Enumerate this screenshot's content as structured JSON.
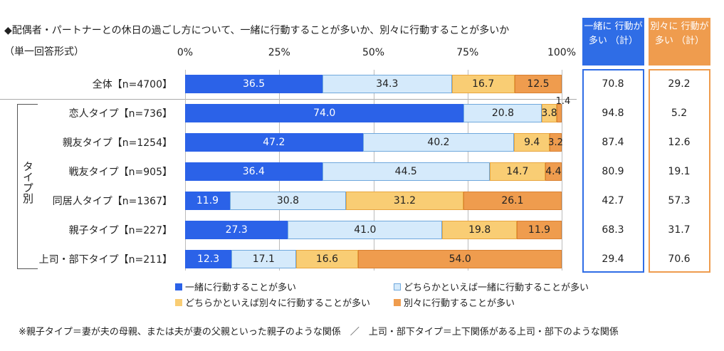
{
  "title": "◆配偶者・パートナーとの休日の過ごし方について、一緒に行動することが多いか、別々に行動することが多いか",
  "subtitle": "（単一回答形式）",
  "group_label": "タイプ別",
  "colors": {
    "together": "#2b62e8",
    "rather_together": "#d5eafb",
    "rather_separate": "#f9cd74",
    "separate": "#ef9c4e"
  },
  "summary_headers": {
    "together": "一緒に 行動が多い （計）",
    "separate": "別々に 行動が多い （計）"
  },
  "footnote": "※親子タイプ＝妻が夫の母親、または夫が妻の父親といった親子のような関係　／　上司・部下タイプ＝上下関係がある上司・部下のような関係",
  "chart_data": {
    "type": "bar",
    "orientation": "horizontal",
    "stacked": true,
    "xlim": [
      0,
      100
    ],
    "xticks": [
      "0%",
      "25%",
      "50%",
      "75%",
      "100%"
    ],
    "categories": [
      "全体【n=4700】",
      "恋人タイプ【n=736】",
      "親友タイプ【n=1254】",
      "戦友タイプ【n=905】",
      "同居人タイプ【n=1367】",
      "親子タイプ【n=227】",
      "上司・部下タイプ【n=211】"
    ],
    "series": [
      {
        "name": "一緒に行動することが多い",
        "values": [
          36.5,
          74.0,
          47.2,
          36.4,
          11.9,
          27.3,
          12.3
        ]
      },
      {
        "name": "どちらかといえば一緒に行動することが多い",
        "values": [
          34.3,
          20.8,
          40.2,
          44.5,
          30.8,
          41.0,
          17.1
        ]
      },
      {
        "name": "どちらかといえば別々に行動することが多い",
        "values": [
          16.7,
          3.8,
          9.4,
          14.7,
          31.2,
          19.8,
          16.6
        ]
      },
      {
        "name": "別々に行動することが多い",
        "values": [
          12.5,
          1.4,
          3.2,
          4.4,
          26.1,
          11.9,
          54.0
        ]
      }
    ],
    "together_total": [
      "70.8",
      "94.8",
      "87.4",
      "80.9",
      "42.7",
      "68.3",
      "29.4"
    ],
    "separate_total": [
      "29.2",
      "5.2",
      "12.6",
      "19.1",
      "57.3",
      "31.7",
      "70.6"
    ],
    "legend_placement": "bottom"
  }
}
